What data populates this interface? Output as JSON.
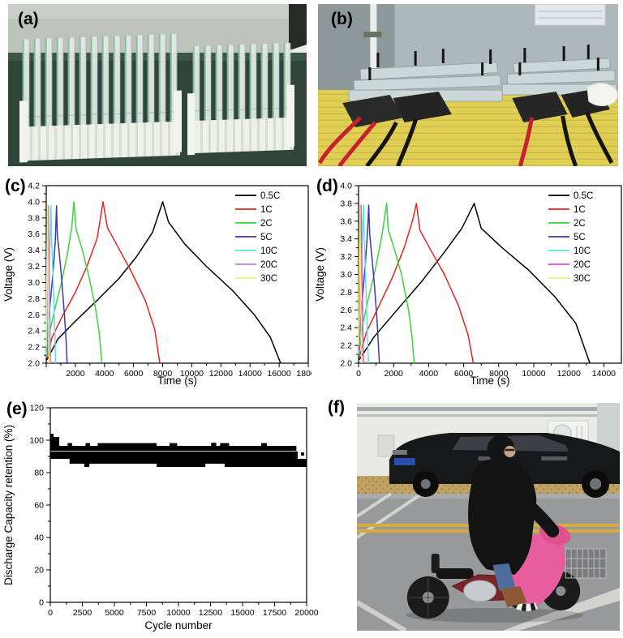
{
  "panels": {
    "a": {
      "label": "(a)"
    },
    "b": {
      "label": "(b)"
    },
    "c": {
      "label": "(c)"
    },
    "d": {
      "label": "(d)"
    },
    "e": {
      "label": "(e)"
    },
    "f": {
      "label": "(f)"
    }
  },
  "colors": {
    "series_black": "#000000",
    "series_red": "#e8231e",
    "series_green": "#3cd43c",
    "series_blue": "#3939b0",
    "series_cyan": "#5fe0e4",
    "series_violet": "#c27fd8",
    "series_magenta": "#e945da",
    "series_yellow": "#ecec80"
  },
  "chart_data": [
    {
      "id": "c",
      "type": "line",
      "xlabel": "Time (s)",
      "ylabel": "Voltage (V)",
      "xlim": [
        0,
        18000
      ],
      "ylim": [
        2.0,
        4.2
      ],
      "xtick_step": 2000,
      "ytick_step": 0.2,
      "x_minor_step": 1000,
      "y_minor_step": 0.1,
      "y_decimals": 1,
      "skip_x_zero_label": true,
      "show_legend": true,
      "legend_position": "top-right",
      "series": [
        {
          "name": "0.5C",
          "color": "#000000",
          "points": [
            [
              40,
              2.04
            ],
            [
              800,
              2.3
            ],
            [
              2000,
              2.52
            ],
            [
              3500,
              2.78
            ],
            [
              5000,
              3.05
            ],
            [
              6200,
              3.32
            ],
            [
              7300,
              3.62
            ],
            [
              8000,
              4.0
            ],
            [
              8400,
              3.75
            ],
            [
              9500,
              3.48
            ],
            [
              11000,
              3.2
            ],
            [
              12800,
              2.9
            ],
            [
              14300,
              2.6
            ],
            [
              15400,
              2.32
            ],
            [
              16100,
              2.0
            ]
          ]
        },
        {
          "name": "1C",
          "color": "#e8231e",
          "points": [
            [
              30,
              2.06
            ],
            [
              400,
              2.32
            ],
            [
              1100,
              2.58
            ],
            [
              2000,
              2.88
            ],
            [
              2800,
              3.2
            ],
            [
              3500,
              3.55
            ],
            [
              3900,
              4.0
            ],
            [
              4200,
              3.68
            ],
            [
              4900,
              3.45
            ],
            [
              5800,
              3.15
            ],
            [
              6800,
              2.78
            ],
            [
              7450,
              2.42
            ],
            [
              7800,
              2.0
            ]
          ]
        },
        {
          "name": "2C",
          "color": "#3cd43c",
          "points": [
            [
              25,
              2.07
            ],
            [
              250,
              2.4
            ],
            [
              600,
              2.68
            ],
            [
              1050,
              3.0
            ],
            [
              1450,
              3.35
            ],
            [
              1750,
              3.68
            ],
            [
              1900,
              4.0
            ],
            [
              2050,
              3.66
            ],
            [
              2450,
              3.42
            ],
            [
              2900,
              3.1
            ],
            [
              3350,
              2.72
            ],
            [
              3650,
              2.36
            ],
            [
              3820,
              2.0
            ]
          ]
        },
        {
          "name": "5C",
          "color": "#3939b0",
          "points": [
            [
              15,
              2.1
            ],
            [
              120,
              2.45
            ],
            [
              300,
              2.8
            ],
            [
              480,
              3.15
            ],
            [
              620,
              3.5
            ],
            [
              710,
              3.95
            ],
            [
              760,
              3.6
            ],
            [
              900,
              3.35
            ],
            [
              1080,
              3.0
            ],
            [
              1250,
              2.6
            ],
            [
              1360,
              2.3
            ],
            [
              1430,
              2.0
            ]
          ]
        },
        {
          "name": "10C",
          "color": "#5fe0e4",
          "points": [
            [
              10,
              2.1
            ],
            [
              70,
              2.5
            ],
            [
              150,
              2.9
            ],
            [
              230,
              3.3
            ],
            [
              300,
              3.7
            ],
            [
              330,
              3.95
            ],
            [
              370,
              3.55
            ],
            [
              450,
              3.15
            ],
            [
              530,
              2.7
            ],
            [
              600,
              2.3
            ],
            [
              640,
              2.0
            ]
          ]
        },
        {
          "name": "20C",
          "color": "#c27fd8",
          "points": [
            [
              8,
              2.15
            ],
            [
              50,
              2.7
            ],
            [
              95,
              3.2
            ],
            [
              135,
              3.7
            ],
            [
              155,
              3.95
            ],
            [
              180,
              3.5
            ],
            [
              220,
              3.0
            ],
            [
              255,
              2.5
            ],
            [
              285,
              2.0
            ]
          ]
        },
        {
          "name": "30C",
          "color": "#ecec80",
          "points": [
            [
              5,
              2.2
            ],
            [
              30,
              2.9
            ],
            [
              60,
              3.5
            ],
            [
              80,
              3.95
            ],
            [
              100,
              3.45
            ],
            [
              135,
              2.9
            ],
            [
              165,
              2.4
            ],
            [
              185,
              2.0
            ]
          ]
        }
      ]
    },
    {
      "id": "d",
      "type": "line",
      "xlabel": "Time (s)",
      "ylabel": "Voltage (V)",
      "xlim": [
        0,
        15000
      ],
      "ylim": [
        2.0,
        4.0
      ],
      "xtick_step": 2000,
      "ytick_step": 0.2,
      "x_minor_step": 1000,
      "y_minor_step": 0.1,
      "y_decimals": 1,
      "skip_x_zero_label": false,
      "show_legend": true,
      "legend_position": "top-right",
      "series": [
        {
          "name": "0.5C",
          "color": "#000000",
          "points": [
            [
              40,
              2.04
            ],
            [
              900,
              2.3
            ],
            [
              2200,
              2.6
            ],
            [
              3600,
              2.92
            ],
            [
              4900,
              3.25
            ],
            [
              5900,
              3.52
            ],
            [
              6600,
              3.8
            ],
            [
              7000,
              3.52
            ],
            [
              8200,
              3.3
            ],
            [
              9700,
              3.05
            ],
            [
              11200,
              2.75
            ],
            [
              12400,
              2.45
            ],
            [
              13200,
              2.0
            ]
          ]
        },
        {
          "name": "1C",
          "color": "#e8231e",
          "points": [
            [
              30,
              2.06
            ],
            [
              450,
              2.35
            ],
            [
              1100,
              2.62
            ],
            [
              1900,
              2.95
            ],
            [
              2600,
              3.3
            ],
            [
              3100,
              3.62
            ],
            [
              3300,
              3.8
            ],
            [
              3500,
              3.5
            ],
            [
              4100,
              3.28
            ],
            [
              4900,
              3.0
            ],
            [
              5700,
              2.65
            ],
            [
              6250,
              2.32
            ],
            [
              6550,
              2.0
            ]
          ]
        },
        {
          "name": "2C",
          "color": "#3cd43c",
          "points": [
            [
              25,
              2.08
            ],
            [
              220,
              2.42
            ],
            [
              550,
              2.72
            ],
            [
              950,
              3.05
            ],
            [
              1300,
              3.4
            ],
            [
              1520,
              3.68
            ],
            [
              1600,
              3.8
            ],
            [
              1700,
              3.5
            ],
            [
              2050,
              3.28
            ],
            [
              2450,
              3.0
            ],
            [
              2850,
              2.6
            ],
            [
              3050,
              2.3
            ],
            [
              3170,
              2.0
            ]
          ]
        },
        {
          "name": "5C",
          "color": "#3939b0",
          "points": [
            [
              15,
              2.1
            ],
            [
              100,
              2.45
            ],
            [
              250,
              2.8
            ],
            [
              400,
              3.15
            ],
            [
              520,
              3.5
            ],
            [
              580,
              3.78
            ],
            [
              640,
              3.45
            ],
            [
              760,
              3.2
            ],
            [
              900,
              2.9
            ],
            [
              1050,
              2.5
            ],
            [
              1190,
              2.0
            ]
          ]
        },
        {
          "name": "10C",
          "color": "#5fe0e4",
          "points": [
            [
              10,
              2.1
            ],
            [
              60,
              2.5
            ],
            [
              130,
              2.95
            ],
            [
              200,
              3.35
            ],
            [
              260,
              3.7
            ],
            [
              285,
              3.78
            ],
            [
              320,
              3.4
            ],
            [
              390,
              3.05
            ],
            [
              460,
              2.6
            ],
            [
              530,
              2.2
            ],
            [
              560,
              2.0
            ]
          ]
        },
        {
          "name": "20C",
          "color": "#e945da",
          "points": [
            [
              8,
              2.15
            ],
            [
              45,
              2.7
            ],
            [
              85,
              3.2
            ],
            [
              120,
              3.65
            ],
            [
              140,
              3.78
            ],
            [
              165,
              3.4
            ],
            [
              205,
              2.9
            ],
            [
              245,
              2.4
            ],
            [
              275,
              2.0
            ]
          ]
        },
        {
          "name": "30C",
          "color": "#ecec80",
          "points": [
            [
              5,
              2.2
            ],
            [
              28,
              2.9
            ],
            [
              55,
              3.45
            ],
            [
              78,
              3.78
            ],
            [
              95,
              3.4
            ],
            [
              125,
              2.85
            ],
            [
              155,
              2.4
            ],
            [
              175,
              2.0
            ]
          ]
        }
      ]
    },
    {
      "id": "e",
      "type": "scatter-band",
      "xlabel": "Cycle number",
      "ylabel": "Discharge Capacity retention (%)",
      "xlim": [
        0,
        20000
      ],
      "ylim": [
        0,
        120
      ],
      "xtick_step": 2500,
      "ytick_step": 20,
      "x_minor_step": 1250,
      "y_minor_step": 10,
      "y_decimals": 0,
      "skip_x_zero_label": false,
      "show_legend": false,
      "color": "#000000",
      "bands": [
        [
          0,
          260,
          96,
          104
        ],
        [
          220,
          700,
          96,
          102
        ],
        [
          0,
          19200,
          93.5,
          96.5
        ],
        [
          1350,
          1700,
          96.5,
          98.2
        ],
        [
          2750,
          3100,
          96.5,
          98.2
        ],
        [
          3700,
          8300,
          96.5,
          98.2
        ],
        [
          9300,
          9900,
          96.5,
          98.2
        ],
        [
          12550,
          12950,
          96.5,
          98.4
        ],
        [
          13250,
          13950,
          96.5,
          98.2
        ],
        [
          16450,
          16900,
          96.5,
          98.2
        ],
        [
          0,
          19300,
          88.5,
          93.1
        ],
        [
          1500,
          20000,
          85.5,
          88.5
        ],
        [
          2650,
          3050,
          83.5,
          85.5
        ],
        [
          8300,
          12100,
          83.5,
          85.5
        ],
        [
          13600,
          20000,
          83.5,
          85.5
        ],
        [
          19550,
          19800,
          90.5,
          92.5
        ]
      ]
    }
  ]
}
